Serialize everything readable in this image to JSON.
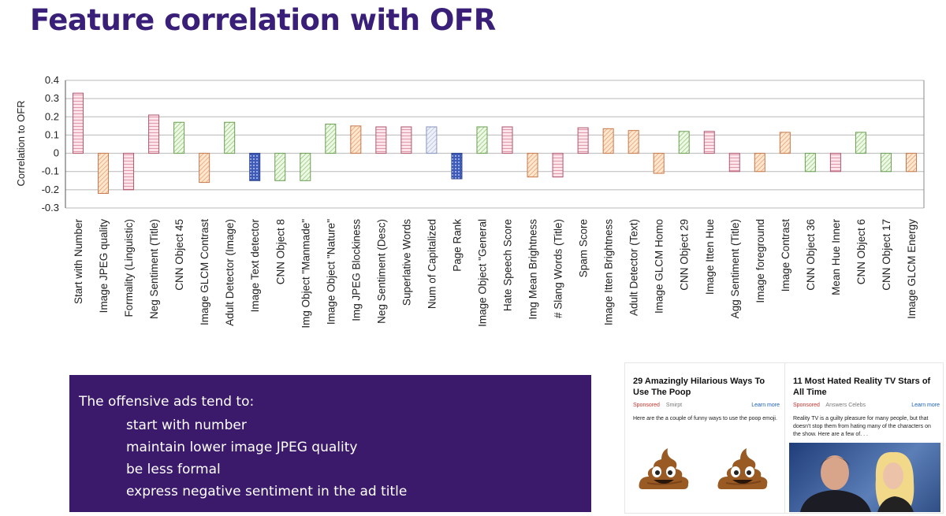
{
  "slide": {
    "title": "Feature correlation with OFR"
  },
  "chart_data": {
    "type": "bar",
    "ylabel": "Correlation to OFR",
    "ylim": [
      -0.3,
      0.4
    ],
    "yticks": [
      "0.4",
      "0.3",
      "0.2",
      "0.1",
      "0",
      "-0.1",
      "-0.2",
      "-0.3"
    ],
    "categories": [
      "Start with Number",
      "Image JPEG quality",
      "Formality (Linguistic)",
      "Neg Sentiment (Title)",
      "CNN Object 45",
      "Image GLCM Contrast",
      "Adult Detector (Image)",
      "Image Text detector",
      "CNN Object 8",
      "Img Object \"Manmade\"",
      "Image Object \"Nature\"",
      "Img JPEG Blockiness",
      "Neg Sentiment (Desc)",
      "Superlative Words",
      "Num of Capitalized",
      "Page Rank",
      "Image Object \"General",
      "Hate Speech Score",
      "Img Mean Brightness",
      "# Slang Words (Title)",
      "Spam Score",
      "Image Itten Brightness",
      "Adult Detector (Text)",
      "Image GLCM Homo",
      "CNN Object 29",
      "Image Itten Hue",
      "Agg Sentiment (Title)",
      "Image foreground",
      "Image Contrast",
      "CNN Object 36",
      "Mean Hue Inner",
      "CNN Object 6",
      "CNN Object 17",
      "Image GLCM Energy"
    ],
    "values": [
      0.33,
      -0.22,
      -0.2,
      0.21,
      0.17,
      -0.16,
      0.17,
      -0.15,
      -0.15,
      -0.15,
      0.16,
      0.15,
      0.145,
      0.145,
      0.145,
      -0.14,
      0.145,
      0.145,
      -0.13,
      -0.13,
      0.14,
      0.135,
      0.125,
      -0.11,
      0.12,
      0.12,
      -0.1,
      -0.1,
      0.115,
      -0.1,
      -0.1,
      0.115,
      -0.1,
      -0.1
    ],
    "groups": [
      "text",
      "image",
      "text",
      "text",
      "cnn",
      "image",
      "cnn",
      "meta",
      "cnn",
      "cnn",
      "cnn",
      "image",
      "text",
      "text",
      "other",
      "meta",
      "cnn",
      "text",
      "image",
      "text",
      "text",
      "image",
      "image",
      "image",
      "cnn",
      "text",
      "text",
      "image",
      "image",
      "cnn",
      "text",
      "cnn",
      "cnn",
      "image"
    ],
    "grid": true,
    "legend": "none"
  },
  "callout": {
    "lead": "The offensive ads tend to:",
    "points": [
      "start with number",
      "maintain lower image JPEG quality",
      "be less formal",
      "express negative sentiment in the ad title"
    ]
  },
  "ads": [
    {
      "title": "29 Amazingly Hilarious Ways To Use The Poop",
      "sponsored": "Sponsored",
      "source": "Smirpt",
      "learn_more": "Learn more",
      "description": "Here are the a couple of funny ways to use the poop emoji."
    },
    {
      "title": "11 Most Hated Reality TV Stars of All Time",
      "sponsored": "Sponsored",
      "source": "Answers Celebs",
      "learn_more": "Learn more",
      "description": "Reality TV is a guilty pleasure for many people, but that doesn't stop them from hating many of the characters on the show. Here are a few of. . ."
    }
  ],
  "colors": {
    "title": "#3a1f78",
    "callout_bg": "#3b1a6b",
    "text": "#f2a9b8",
    "image": "#f7c48f",
    "cnn": "#c2e8a8",
    "meta": "#6a7fd0",
    "other": "#c8d0ec"
  },
  "icons": [
    "poop-emoji-icon",
    "poop-emoji-icon"
  ]
}
